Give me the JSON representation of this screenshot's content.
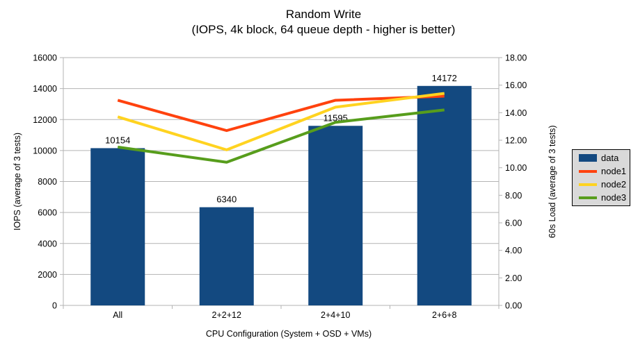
{
  "chart": {
    "title": "Random Write",
    "subtitle": "(IOPS, 4k block, 64 queue depth - higher is better)",
    "xlabel": "CPU Configuration (System + OSD + VMs)",
    "ylabel_left": "IOPS (average of 3 tests)",
    "ylabel_right": "60s Load (average of 3 tests)"
  },
  "legend": {
    "items": [
      {
        "label": "data",
        "color": "#134980",
        "type": "box"
      },
      {
        "label": "node1",
        "color": "#ff420e",
        "type": "line"
      },
      {
        "label": "node2",
        "color": "#ffd320",
        "type": "line"
      },
      {
        "label": "node3",
        "color": "#579d1c",
        "type": "line"
      }
    ]
  },
  "chart_data": {
    "type": "bar",
    "subtype": "combo-bar-line-dual-axis",
    "title": "Random Write",
    "subtitle": "(IOPS, 4k block, 64 queue depth - higher is better)",
    "xlabel": "CPU Configuration (System + OSD + VMs)",
    "categories": [
      "All",
      "2+2+12",
      "2+4+10",
      "2+6+8"
    ],
    "bar_series": {
      "name": "data",
      "axis": "left",
      "color": "#134980",
      "values": [
        10154,
        6340,
        11595,
        14172
      ],
      "value_labels": [
        "10154",
        "6340",
        "11595",
        "14172"
      ]
    },
    "line_series": [
      {
        "name": "node1",
        "axis": "right",
        "color": "#ff420e",
        "values": [
          14.9,
          12.7,
          14.9,
          15.2
        ]
      },
      {
        "name": "node2",
        "axis": "right",
        "color": "#ffd320",
        "values": [
          13.7,
          11.3,
          14.4,
          15.4
        ]
      },
      {
        "name": "node3",
        "axis": "right",
        "color": "#579d1c",
        "values": [
          11.5,
          10.4,
          13.3,
          14.2
        ]
      }
    ],
    "left_axis": {
      "title": "IOPS (average of 3 tests)",
      "min": 0,
      "max": 16000,
      "tick_step": 2000,
      "tick_labels": [
        "0",
        "2000",
        "4000",
        "6000",
        "8000",
        "10000",
        "12000",
        "14000",
        "16000"
      ]
    },
    "right_axis": {
      "title": "60s Load (average of 3 tests)",
      "min": 0,
      "max": 18,
      "tick_step": 2,
      "tick_labels": [
        "0.00",
        "2.00",
        "4.00",
        "6.00",
        "8.00",
        "10.00",
        "12.00",
        "14.00",
        "16.00",
        "18.00"
      ]
    },
    "grid": "horizontal",
    "legend_position": "right",
    "colors": {
      "grid": "#b3b3b3",
      "axis": "#b3b3b3",
      "text": "#000000",
      "background": "#ffffff",
      "legend_bg": "#d9d9d9",
      "legend_border": "#000000"
    }
  }
}
